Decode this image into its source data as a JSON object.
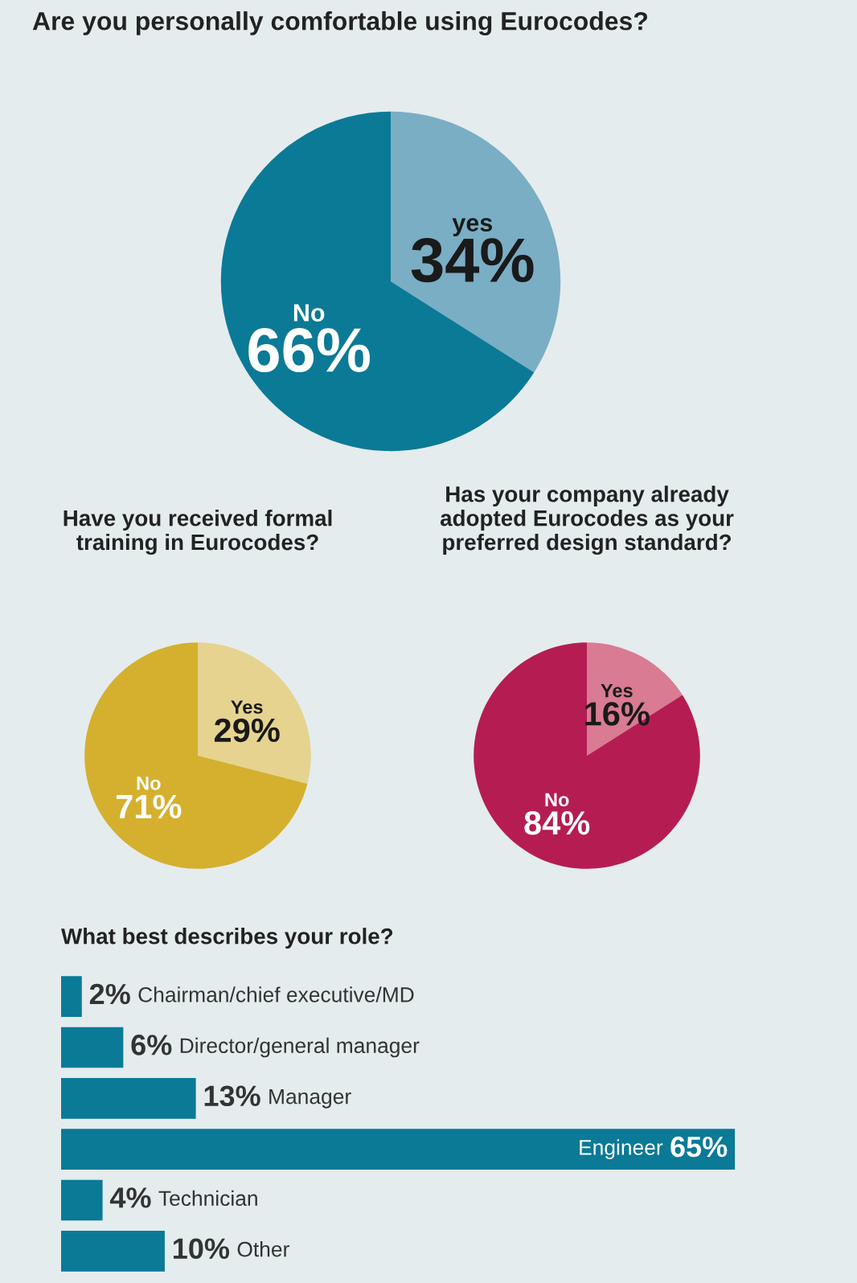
{
  "chart_data": [
    {
      "type": "pie",
      "title": "Are you personally comfortable using Eurocodes?",
      "categories": [
        "yes",
        "No"
      ],
      "values": [
        34,
        66
      ],
      "colors": [
        "#7aaec4",
        "#0b7a96"
      ],
      "value_labels": [
        "34%",
        "66%"
      ]
    },
    {
      "type": "pie",
      "title": "Have you received formal training in Eurocodes?",
      "categories": [
        "Yes",
        "No"
      ],
      "values": [
        29,
        71
      ],
      "colors": [
        "#e6d38f",
        "#d4b02e"
      ],
      "value_labels": [
        "29%",
        "71%"
      ]
    },
    {
      "type": "pie",
      "title": "Has your company already adopted Eurocodes as your preferred design standard?",
      "categories": [
        "Yes",
        "No"
      ],
      "values": [
        16,
        84
      ],
      "colors": [
        "#d97b92",
        "#b51d52"
      ],
      "value_labels": [
        "16%",
        "84%"
      ]
    },
    {
      "type": "bar",
      "orientation": "horizontal",
      "title": "What best describes your role?",
      "categories": [
        "Chairman/chief executive/MD",
        "Director/general manager",
        "Manager",
        "Engineer",
        "Technician",
        "Other"
      ],
      "values": [
        2,
        6,
        13,
        65,
        4,
        10
      ],
      "color": "#0b7a96",
      "value_labels": [
        "2%",
        "6%",
        "13%",
        "65%",
        "4%",
        "10%"
      ]
    }
  ]
}
